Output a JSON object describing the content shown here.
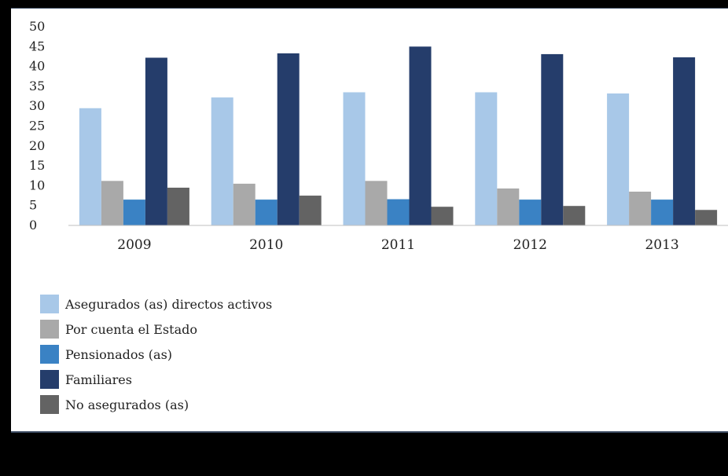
{
  "chart_data": {
    "type": "bar",
    "title": "",
    "xlabel": "",
    "ylabel": "",
    "categories": [
      "2009",
      "2010",
      "2011",
      "2012",
      "2013"
    ],
    "ylim": [
      0,
      50
    ],
    "yticks": [
      0,
      5,
      10,
      15,
      20,
      25,
      30,
      35,
      40,
      45,
      50
    ],
    "grid": false,
    "legend_position": "bottom-left",
    "series": [
      {
        "name": "Asegurados (as) directos activos",
        "color": "#a8c8e8",
        "values": [
          29.5,
          32.2,
          33.5,
          33.5,
          33.2
        ]
      },
      {
        "name": "Por cuenta el Estado",
        "color": "#a9a9a9",
        "values": [
          11.2,
          10.5,
          11.2,
          9.3,
          8.5
        ]
      },
      {
        "name": "Pensionados (as)",
        "color": "#3a82c4",
        "values": [
          6.5,
          6.5,
          6.6,
          6.5,
          6.5
        ]
      },
      {
        "name": "Familiares",
        "color": "#253d6b",
        "values": [
          42.2,
          43.3,
          45.0,
          43.1,
          42.3
        ]
      },
      {
        "name": "No asegurados (as)",
        "color": "#636363",
        "values": [
          9.5,
          7.5,
          4.7,
          4.9,
          3.9
        ]
      }
    ]
  }
}
